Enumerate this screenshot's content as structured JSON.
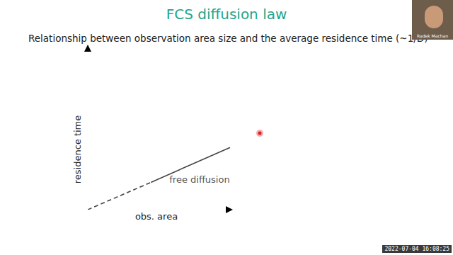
{
  "chart_data": {
    "type": "line",
    "title": "FCS diffusion law",
    "subtitle": "Relationship between observation area size and the average residence time (~1/D)",
    "x_label": "obs. area",
    "y_label": "residence time",
    "xlim": [
      0,
      10
    ],
    "ylim": [
      0,
      10
    ],
    "tick_labels": false,
    "grid": false,
    "series": [
      {
        "x": [
          0,
          4.4
        ],
        "values": [
          0,
          1.67
        ],
        "color": "#444444",
        "line_style": "dashed"
      },
      {
        "name": "free diffusion",
        "x": [
          4.4,
          9.9
        ],
        "values": [
          1.67,
          3.8
        ],
        "color": "#444444",
        "line_style": "solid"
      }
    ]
  },
  "overlay": {
    "speaker": "Radek Machan",
    "timestamp": "2022-07-04 16:08:25"
  }
}
